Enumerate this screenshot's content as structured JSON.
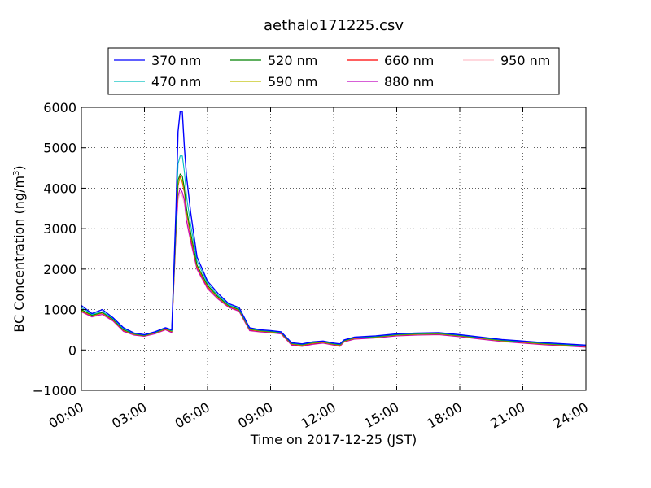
{
  "chart_data": {
    "type": "line",
    "title": "aethalo171225.csv",
    "xlabel": "Time on 2017-12-25 (JST)",
    "ylabel": "BC Concentration (ng/m",
    "ylabel_sup": "3",
    "ylabel_end": ")",
    "xlim": [
      0,
      24
    ],
    "ylim": [
      -1000,
      6000
    ],
    "grid": true,
    "legend_position": "top",
    "x_unit": "hours since 00:00",
    "x_ticks": [
      {
        "value": 0,
        "label": "00:00"
      },
      {
        "value": 3,
        "label": "03:00"
      },
      {
        "value": 6,
        "label": "06:00"
      },
      {
        "value": 9,
        "label": "09:00"
      },
      {
        "value": 12,
        "label": "12:00"
      },
      {
        "value": 15,
        "label": "15:00"
      },
      {
        "value": 18,
        "label": "18:00"
      },
      {
        "value": 21,
        "label": "21:00"
      },
      {
        "value": 24,
        "label": "24:00"
      }
    ],
    "y_ticks": [
      {
        "value": 6000,
        "label": "6000"
      },
      {
        "value": 5000,
        "label": "5000"
      },
      {
        "value": 4000,
        "label": "4000"
      },
      {
        "value": 3000,
        "label": "3000"
      },
      {
        "value": 2000,
        "label": "2000"
      },
      {
        "value": 1000,
        "label": "1000"
      },
      {
        "value": 0,
        "label": "0"
      },
      {
        "value": -1000,
        "label": "−1000"
      }
    ],
    "x": [
      0,
      0.5,
      1,
      1.5,
      2,
      2.5,
      3,
      3.5,
      4,
      4.3,
      4.5,
      4.6,
      4.7,
      4.8,
      4.9,
      5,
      5.2,
      5.5,
      6,
      6.5,
      7,
      7.5,
      8,
      8.5,
      9,
      9.5,
      10,
      10.5,
      11,
      11.5,
      12,
      12.3,
      12.5,
      13,
      14,
      15,
      16,
      17,
      18,
      19,
      20,
      21,
      22,
      23,
      24
    ],
    "series": [
      {
        "name": "370 nm",
        "color": "#0000ff",
        "width": 1.4,
        "values": [
          1100,
          900,
          1000,
          800,
          550,
          420,
          380,
          450,
          550,
          500,
          3500,
          5400,
          5900,
          5900,
          5000,
          4300,
          3400,
          2300,
          1700,
          1400,
          1150,
          1050,
          550,
          500,
          480,
          450,
          180,
          150,
          200,
          220,
          170,
          150,
          250,
          320,
          350,
          400,
          420,
          430,
          380,
          320,
          260,
          220,
          180,
          150,
          120
        ]
      },
      {
        "name": "470 nm",
        "color": "#00bfbf",
        "width": 1.1,
        "values": [
          1050,
          880,
          950,
          780,
          520,
          410,
          370,
          440,
          540,
          480,
          3300,
          4600,
          4800,
          4800,
          4400,
          3800,
          3100,
          2200,
          1650,
          1350,
          1120,
          1020,
          530,
          490,
          470,
          440,
          170,
          140,
          190,
          210,
          160,
          140,
          240,
          310,
          340,
          390,
          410,
          420,
          370,
          310,
          250,
          210,
          170,
          140,
          110
        ]
      },
      {
        "name": "520 nm",
        "color": "#008000",
        "width": 1.1,
        "values": [
          1000,
          860,
          930,
          760,
          500,
          400,
          360,
          430,
          530,
          470,
          3100,
          4200,
          4350,
          4300,
          4000,
          3500,
          2900,
          2100,
          1600,
          1320,
          1100,
          1000,
          520,
          480,
          460,
          430,
          160,
          130,
          180,
          200,
          150,
          130,
          230,
          300,
          330,
          380,
          400,
          410,
          360,
          300,
          240,
          200,
          160,
          130,
          100
        ]
      },
      {
        "name": "590 nm",
        "color": "#bfbf00",
        "width": 1.1,
        "values": [
          980,
          850,
          920,
          750,
          490,
          390,
          355,
          425,
          520,
          460,
          3050,
          4100,
          4250,
          4200,
          3950,
          3450,
          2850,
          2080,
          1580,
          1300,
          1090,
          990,
          510,
          470,
          450,
          420,
          150,
          120,
          170,
          190,
          140,
          120,
          220,
          290,
          320,
          370,
          390,
          400,
          350,
          290,
          230,
          190,
          150,
          120,
          90
        ]
      },
      {
        "name": "660 nm",
        "color": "#ff0000",
        "width": 1.1,
        "values": [
          970,
          840,
          910,
          740,
          480,
          385,
          350,
          420,
          515,
          455,
          3000,
          4050,
          4300,
          4150,
          3900,
          3400,
          2800,
          2050,
          1560,
          1290,
          1080,
          980,
          500,
          465,
          445,
          415,
          140,
          110,
          160,
          185,
          135,
          110,
          215,
          285,
          315,
          365,
          385,
          395,
          345,
          285,
          225,
          185,
          145,
          115,
          85
        ]
      },
      {
        "name": "880 nm",
        "color": "#bf00bf",
        "width": 1.1,
        "values": [
          950,
          820,
          880,
          720,
          460,
          370,
          340,
          400,
          500,
          430,
          2900,
          3800,
          4000,
          3900,
          3700,
          3200,
          2700,
          2000,
          1520,
          1260,
          1060,
          960,
          480,
          450,
          430,
          400,
          120,
          90,
          140,
          170,
          120,
          90,
          200,
          270,
          300,
          350,
          370,
          380,
          330,
          270,
          210,
          170,
          130,
          100,
          70
        ]
      },
      {
        "name": "950 nm",
        "color": "#ffc0cb",
        "width": 1.1,
        "values": [
          940,
          810,
          870,
          710,
          455,
          365,
          335,
          395,
          495,
          425,
          2850,
          3700,
          3900,
          3800,
          3600,
          3150,
          2650,
          1980,
          1500,
          1250,
          1050,
          950,
          470,
          440,
          420,
          395,
          115,
          85,
          135,
          165,
          115,
          85,
          195,
          265,
          295,
          345,
          365,
          375,
          325,
          265,
          205,
          165,
          125,
          95,
          65
        ]
      }
    ]
  }
}
